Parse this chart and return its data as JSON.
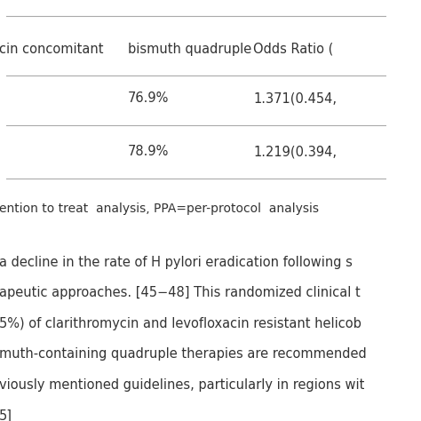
{
  "bg_color": "#ffffff",
  "table_header": [
    "cin concomitant",
    "bismuth quadruple",
    "Odds Ratio ("
  ],
  "row1": [
    "",
    "76.9%",
    "1.371(0.454,"
  ],
  "row2": [
    "",
    "78.9%",
    "1.219(0.394,"
  ],
  "note_text": "ention to treat  analysis, PPA=per-protocol  analysis",
  "body_text_lines": [
    "a decline in the rate of H pylori eradication following s",
    "apeutic approaches. [45−48] This randomized clinical t",
    "5%) of clarithromycin and levofloxacin resistant helicob",
    "muth-containing quadruple therapies are recommended",
    "viously mentioned guidelines, particularly in regions wit",
    "5]"
  ],
  "font_color": "#333333",
  "header_font_size": 10.5,
  "body_font_size": 10.5,
  "note_font_size": 10.0,
  "line_color": "#aaaaaa"
}
